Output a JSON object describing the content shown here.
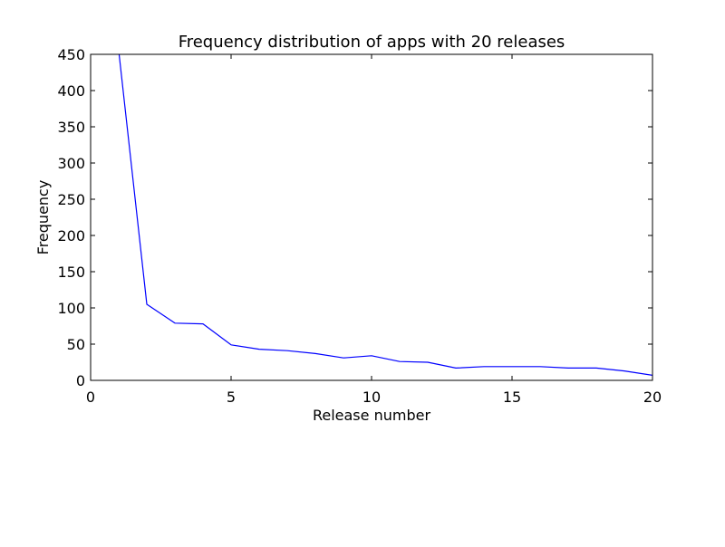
{
  "chart_data": {
    "type": "line",
    "title": "Frequency distribution of apps with 20 releases",
    "xlabel": "Release number",
    "ylabel": "Frequency",
    "xlim": [
      0,
      20
    ],
    "ylim": [
      0,
      450
    ],
    "xticks": [
      0,
      5,
      10,
      15,
      20
    ],
    "yticks": [
      0,
      50,
      100,
      150,
      200,
      250,
      300,
      350,
      400,
      450
    ],
    "grid": false,
    "legend": "none",
    "series": [
      {
        "color": "#0000ff",
        "x": [
          1,
          2,
          3,
          4,
          5,
          6,
          7,
          8,
          9,
          10,
          11,
          12,
          13,
          14,
          15,
          16,
          17,
          18,
          19,
          20
        ],
        "y": [
          455,
          105,
          79,
          78,
          49,
          43,
          41,
          37,
          31,
          34,
          26,
          25,
          17,
          19,
          19,
          19,
          17,
          17,
          13,
          7
        ]
      }
    ]
  }
}
